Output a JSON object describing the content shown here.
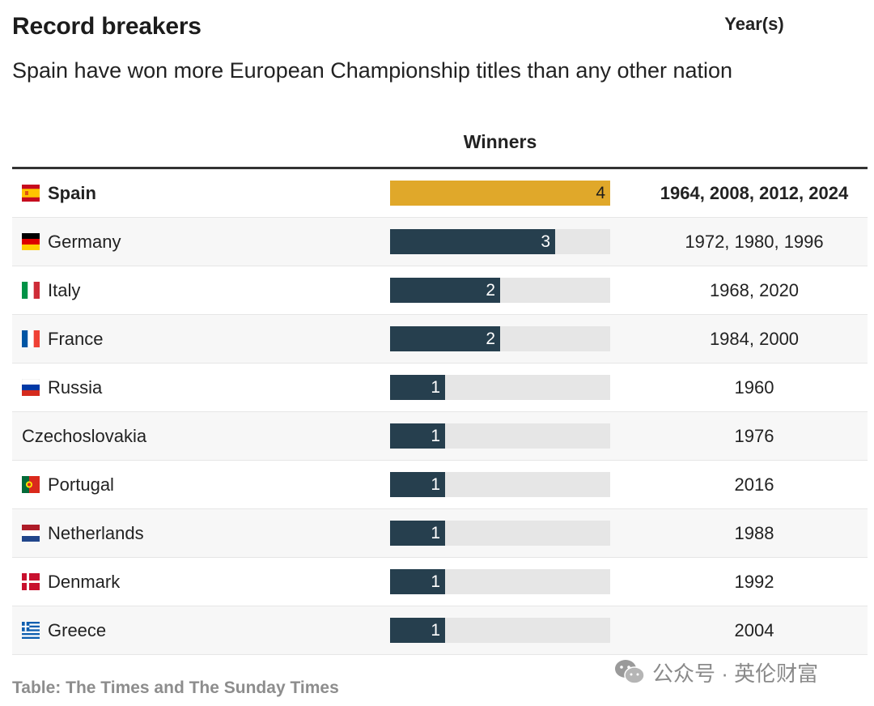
{
  "header": {
    "title": "Record breakers",
    "subtitle": "Spain have won more European Championship titles than any other nation"
  },
  "columns": {
    "winners": "Winners",
    "years": "Year(s)"
  },
  "colors": {
    "leader_bar": "#e0a82a",
    "bar": "#263f4e",
    "track": "#e6e6e6"
  },
  "chart_data": {
    "type": "bar",
    "max": 4,
    "rows": [
      {
        "country": "Spain",
        "flag": "spain-flag-icon",
        "winners": 4,
        "years": "1964, 2008, 2012, 2024"
      },
      {
        "country": "Germany",
        "flag": "germany-flag-icon",
        "winners": 3,
        "years": "1972, 1980, 1996"
      },
      {
        "country": "Italy",
        "flag": "italy-flag-icon",
        "winners": 2,
        "years": "1968, 2020"
      },
      {
        "country": "France",
        "flag": "france-flag-icon",
        "winners": 2,
        "years": "1984, 2000"
      },
      {
        "country": "Russia",
        "flag": "russia-flag-icon",
        "winners": 1,
        "years": "1960"
      },
      {
        "country": "Czechoslovakia",
        "flag": "",
        "winners": 1,
        "years": "1976"
      },
      {
        "country": "Portugal",
        "flag": "portugal-flag-icon",
        "winners": 1,
        "years": "2016"
      },
      {
        "country": "Netherlands",
        "flag": "netherlands-flag-icon",
        "winners": 1,
        "years": "1988"
      },
      {
        "country": "Denmark",
        "flag": "denmark-flag-icon",
        "winners": 1,
        "years": "1992"
      },
      {
        "country": "Greece",
        "flag": "greece-flag-icon",
        "winners": 1,
        "years": "2004"
      }
    ]
  },
  "footer": {
    "source": "Table: The Times and The Sunday Times",
    "watermark": "公众号 · 英伦财富"
  }
}
